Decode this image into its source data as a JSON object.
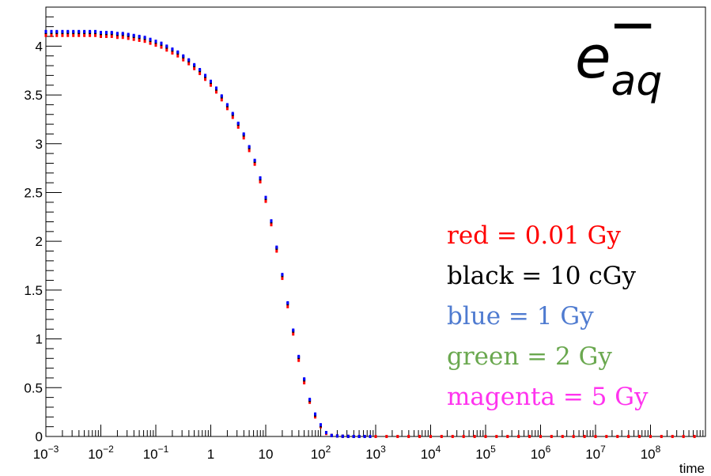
{
  "chart_data": {
    "type": "scatter",
    "title": "",
    "xlabel": "time",
    "ylabel": "",
    "xscale": "log",
    "xlim": [
      0.001,
      1000000000
    ],
    "ylim": [
      0,
      4.4
    ],
    "grid": false,
    "annotation": "e_aq^-",
    "symbol": {
      "base": "e",
      "subscript": "aq",
      "superscript": "−"
    },
    "x_ticks": [
      {
        "base": "10",
        "exp": "−3"
      },
      {
        "base": "10",
        "exp": "−2"
      },
      {
        "base": "10",
        "exp": "−1"
      },
      {
        "base": "1",
        "exp": ""
      },
      {
        "base": "10",
        "exp": ""
      },
      {
        "base": "10",
        "exp": "2"
      },
      {
        "base": "10",
        "exp": "3"
      },
      {
        "base": "10",
        "exp": "4"
      },
      {
        "base": "10",
        "exp": "5"
      },
      {
        "base": "10",
        "exp": "6"
      },
      {
        "base": "10",
        "exp": "7"
      },
      {
        "base": "10",
        "exp": "8"
      }
    ],
    "y_ticks": [
      "0",
      "0.5",
      "1",
      "1.5",
      "2",
      "2.5",
      "3",
      "3.5",
      "4"
    ],
    "legend_position": "bottom-right",
    "legend": [
      {
        "text": "red = 0.01 Gy",
        "color": "#ff0000"
      },
      {
        "text": "black = 10 cGy",
        "color": "#000000"
      },
      {
        "text": "blue = 1 Gy",
        "color": "#4f7bd0"
      },
      {
        "text": "green = 2 Gy",
        "color": "#6aa84f"
      },
      {
        "text": "magenta = 5 Gy",
        "color": "#ff33ee"
      }
    ],
    "series": [
      {
        "color": "#ff0000",
        "x": [
          0.001,
          0.00126,
          0.00158,
          0.002,
          0.00251,
          0.00316,
          0.00398,
          0.00501,
          0.00631,
          0.00794,
          0.01,
          0.0126,
          0.0158,
          0.02,
          0.0251,
          0.0316,
          0.0398,
          0.0501,
          0.0631,
          0.0794,
          0.1,
          0.126,
          0.158,
          0.2,
          0.251,
          0.316,
          0.398,
          0.501,
          0.631,
          0.794,
          1,
          1.26,
          1.58,
          2,
          2.51,
          3.16,
          3.98,
          5.01,
          6.31,
          7.94,
          10,
          12.6,
          15.8,
          20,
          25.1,
          31.6,
          39.8,
          50.1,
          63.1,
          79.4,
          100,
          126,
          158,
          200,
          251,
          316,
          398,
          501,
          631,
          794,
          1000,
          1580,
          2510,
          3980,
          6310,
          10000,
          15800,
          25100,
          39800,
          63100,
          100000,
          158000,
          251000,
          398000,
          631000,
          1000000,
          1580000,
          2510000,
          3980000,
          6310000,
          10000000,
          15800000,
          25100000,
          39800000,
          63100000,
          100000000,
          158000000,
          251000000,
          398000000,
          631000000
        ],
        "y": [
          4.11,
          4.11,
          4.11,
          4.11,
          4.11,
          4.11,
          4.11,
          4.11,
          4.11,
          4.11,
          4.1,
          4.1,
          4.1,
          4.09,
          4.09,
          4.08,
          4.07,
          4.06,
          4.05,
          4.03,
          4.01,
          3.99,
          3.96,
          3.93,
          3.9,
          3.86,
          3.82,
          3.77,
          3.72,
          3.66,
          3.6,
          3.53,
          3.45,
          3.36,
          3.27,
          3.17,
          3.06,
          2.93,
          2.79,
          2.61,
          2.41,
          2.17,
          1.9,
          1.62,
          1.33,
          1.05,
          0.78,
          0.55,
          0.35,
          0.2,
          0.1,
          0.03,
          0.01,
          0.005,
          0.002,
          0.001,
          0.0,
          0.0,
          0.0,
          0.0,
          0.0,
          0.0,
          0.0,
          0.0,
          0.0,
          0.0,
          0.0,
          0.0,
          0.0,
          0.0,
          0.0,
          0.0,
          0.0,
          0.0,
          0.0,
          0.0,
          0.0,
          0.0,
          0.0,
          0.0,
          0.0,
          0.0,
          0.0,
          0.0,
          0.0,
          0.0,
          0.0,
          0.0,
          0.0,
          0.0
        ]
      },
      {
        "color": "#000000",
        "x": [
          0.001,
          0.00126,
          0.00158,
          0.002,
          0.00251,
          0.00316,
          0.00398,
          0.00501,
          0.00631,
          0.00794,
          0.01,
          0.0126,
          0.0158,
          0.02,
          0.0251,
          0.0316,
          0.0398,
          0.0501,
          0.0631,
          0.0794,
          0.1,
          0.126,
          0.158,
          0.2,
          0.251,
          0.316,
          0.398,
          0.501,
          0.631,
          0.794,
          1,
          1.26,
          1.58,
          2,
          2.51,
          3.16,
          3.98,
          5.01,
          6.31,
          7.94,
          10,
          12.6,
          15.8,
          20,
          25.1,
          31.6,
          39.8,
          50.1,
          63.1,
          79.4,
          100,
          126,
          158,
          200,
          251,
          316,
          398,
          501,
          631,
          794
        ],
        "y": [
          4.14,
          4.14,
          4.14,
          4.14,
          4.14,
          4.14,
          4.14,
          4.14,
          4.14,
          4.14,
          4.13,
          4.13,
          4.13,
          4.12,
          4.12,
          4.11,
          4.1,
          4.09,
          4.08,
          4.06,
          4.04,
          4.02,
          3.99,
          3.96,
          3.93,
          3.89,
          3.85,
          3.8,
          3.75,
          3.69,
          3.63,
          3.56,
          3.48,
          3.39,
          3.3,
          3.2,
          3.09,
          2.96,
          2.82,
          2.64,
          2.44,
          2.2,
          1.93,
          1.65,
          1.36,
          1.08,
          0.81,
          0.58,
          0.37,
          0.22,
          0.11,
          0.04,
          0.01,
          0.005,
          0.002,
          0.001,
          0.0,
          0.0,
          0.0,
          0.0
        ]
      },
      {
        "color": "#0000ff",
        "x": [
          0.001,
          0.00126,
          0.00158,
          0.002,
          0.00251,
          0.00316,
          0.00398,
          0.00501,
          0.00631,
          0.00794,
          0.01,
          0.0126,
          0.0158,
          0.02,
          0.0251,
          0.0316,
          0.0398,
          0.0501,
          0.0631,
          0.0794,
          0.1,
          0.126,
          0.158,
          0.2,
          0.251,
          0.316,
          0.398,
          0.501,
          0.631,
          0.794,
          1,
          1.26,
          1.58,
          2,
          2.51,
          3.16,
          3.98,
          5.01,
          6.31,
          7.94,
          10,
          12.6,
          15.8,
          20,
          25.1,
          31.6,
          39.8,
          50.1,
          63.1,
          79.4,
          100,
          126,
          158,
          200,
          251,
          316,
          398,
          501,
          631,
          794
        ],
        "y": [
          4.15,
          4.15,
          4.15,
          4.15,
          4.15,
          4.15,
          4.15,
          4.15,
          4.15,
          4.15,
          4.14,
          4.14,
          4.14,
          4.13,
          4.13,
          4.12,
          4.11,
          4.1,
          4.09,
          4.07,
          4.05,
          4.03,
          4.0,
          3.97,
          3.94,
          3.9,
          3.86,
          3.81,
          3.76,
          3.7,
          3.64,
          3.57,
          3.49,
          3.4,
          3.31,
          3.21,
          3.1,
          2.97,
          2.83,
          2.65,
          2.45,
          2.21,
          1.94,
          1.66,
          1.37,
          1.09,
          0.82,
          0.59,
          0.38,
          0.23,
          0.12,
          0.04,
          0.01,
          0.005,
          0.002,
          0.001,
          0.0,
          0.0,
          0.0,
          0.0
        ]
      }
    ]
  }
}
